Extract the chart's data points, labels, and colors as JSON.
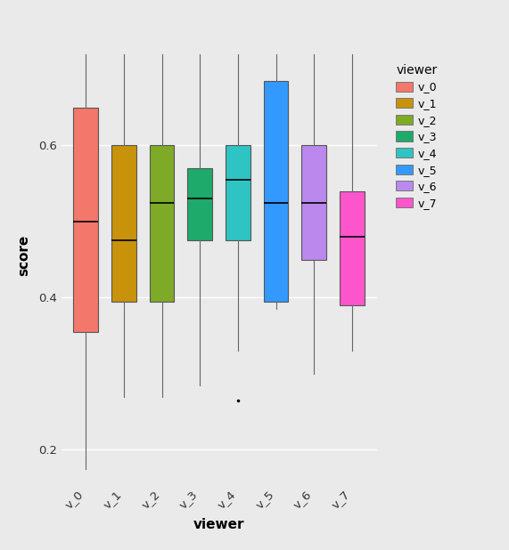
{
  "viewers": [
    "v_0",
    "v_1",
    "v_2",
    "v_3",
    "v_4",
    "v_5",
    "v_6",
    "v_7"
  ],
  "colors": {
    "v_0": "#F4776B",
    "v_1": "#C8930A",
    "v_2": "#7EAA28",
    "v_3": "#1EAA6A",
    "v_4": "#2EC4C4",
    "v_5": "#3399FF",
    "v_6": "#BB88EE",
    "v_7": "#FF55CC"
  },
  "box_stats": {
    "v_0": {
      "whislo": 0.175,
      "q1": 0.355,
      "med": 0.5,
      "q3": 0.65,
      "whishi": 0.72,
      "fliers": []
    },
    "v_1": {
      "whislo": 0.27,
      "q1": 0.395,
      "med": 0.475,
      "q3": 0.6,
      "whishi": 0.72,
      "fliers": []
    },
    "v_2": {
      "whislo": 0.27,
      "q1": 0.395,
      "med": 0.525,
      "q3": 0.6,
      "whishi": 0.72,
      "fliers": []
    },
    "v_3": {
      "whislo": 0.285,
      "q1": 0.475,
      "med": 0.53,
      "q3": 0.57,
      "whishi": 0.72,
      "fliers": []
    },
    "v_4": {
      "whislo": 0.33,
      "q1": 0.475,
      "med": 0.555,
      "q3": 0.6,
      "whishi": 0.72,
      "fliers": [
        0.265
      ]
    },
    "v_5": {
      "whislo": 0.385,
      "q1": 0.395,
      "med": 0.525,
      "q3": 0.685,
      "whishi": 0.72,
      "fliers": []
    },
    "v_6": {
      "whislo": 0.3,
      "q1": 0.45,
      "med": 0.525,
      "q3": 0.6,
      "whishi": 0.72,
      "fliers": []
    },
    "v_7": {
      "whislo": 0.33,
      "q1": 0.39,
      "med": 0.48,
      "q3": 0.54,
      "whishi": 0.72,
      "fliers": []
    }
  },
  "xlabel": "viewer",
  "ylabel": "score",
  "ylim": [
    0.155,
    0.755
  ],
  "yticks": [
    0.2,
    0.4,
    0.6
  ],
  "ytick_labels": [
    "0.2",
    "0.4",
    "0.6"
  ],
  "background_color": "#EAEAEA",
  "panel_color": "#EAEAEA",
  "grid_color": "#FFFFFF",
  "legend_title": "viewer",
  "box_width": 0.65
}
